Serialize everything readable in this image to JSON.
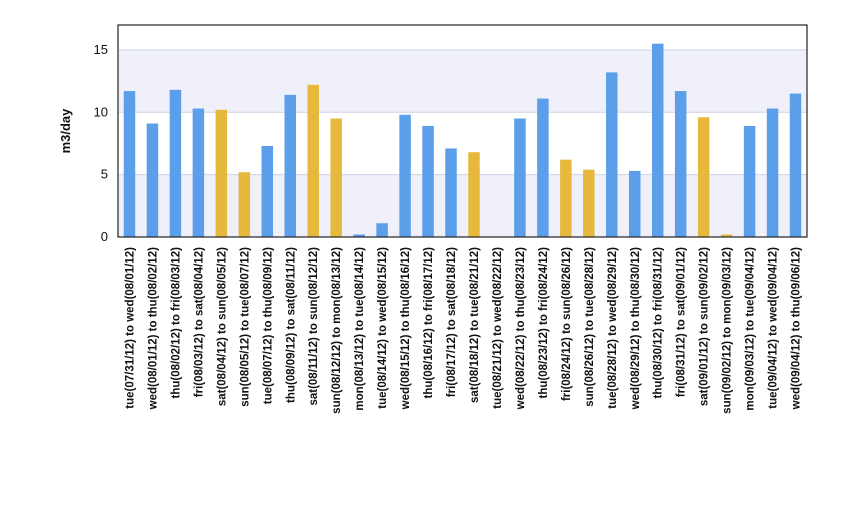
{
  "chart_data": {
    "type": "bar",
    "xlabel": "",
    "ylabel": "m3/day",
    "ylim": [
      0,
      17
    ],
    "yticks": [
      0,
      5,
      10,
      15
    ],
    "grid": true,
    "colors": {
      "weekday": "#5b9ee9",
      "weekend": "#e6b93c",
      "band": "#f0f0fa",
      "grid": "#cfd3e6"
    },
    "categories": [
      "tue(07/31/12) to wed(08/01/12)",
      "wed(08/01/12) to thu(08/02/12)",
      "thu(08/02/12) to fri(08/03/12)",
      "fri(08/03/12) to sat(08/04/12)",
      "sat(08/04/12) to sun(08/05/12)",
      "sun(08/05/12) to tue(08/07/12)",
      "tue(08/07/12) to thu(08/09/12)",
      "thu(08/09/12) to sat(08/11/12)",
      "sat(08/11/12) to sun(08/12/12)",
      "sun(08/12/12) to mon(08/13/12)",
      "mon(08/13/12) to tue(08/14/12)",
      "tue(08/14/12) to wed(08/15/12)",
      "wed(08/15/12) to thu(08/16/12)",
      "thu(08/16/12) to fri(08/17/12)",
      "fri(08/17/12) to sat(08/18/12)",
      "sat(08/18/12) to tue(08/21/12)",
      "tue(08/21/12) to wed(08/22/12)",
      "wed(08/22/12) to thu(08/23/12)",
      "thu(08/23/12) to fri(08/24/12)",
      "fri(08/24/12) to sun(08/26/12)",
      "sun(08/26/12) to tue(08/28/12)",
      "tue(08/28/12) to wed(08/29/12)",
      "wed(08/29/12) to thu(08/30/12)",
      "thu(08/30/12) to fri(08/31/12)",
      "fri(08/31/12) to sat(09/01/12)",
      "sat(09/01/12) to sun(09/02/12)",
      "sun(09/02/12) to mon(09/03/12)",
      "mon(09/03/12) to tue(09/04/12)",
      "tue(09/04/12) to wed(09/04/12)",
      "wed(09/04/12) to thu(09/06/12)"
    ],
    "values": [
      11.7,
      9.1,
      11.8,
      10.3,
      10.2,
      5.2,
      7.3,
      11.4,
      12.2,
      9.5,
      0.2,
      1.1,
      9.8,
      8.9,
      7.1,
      6.8,
      0.0,
      9.5,
      11.1,
      6.2,
      5.4,
      13.2,
      5.3,
      15.5,
      11.7,
      9.6,
      0.2,
      8.9,
      10.3,
      11.5
    ],
    "bar_types": [
      "weekday",
      "weekday",
      "weekday",
      "weekday",
      "weekend",
      "weekend",
      "weekday",
      "weekday",
      "weekend",
      "weekend",
      "weekday",
      "weekday",
      "weekday",
      "weekday",
      "weekday",
      "weekend",
      "weekday",
      "weekday",
      "weekday",
      "weekend",
      "weekend",
      "weekday",
      "weekday",
      "weekday",
      "weekday",
      "weekend",
      "weekend",
      "weekday",
      "weekday",
      "weekday"
    ]
  }
}
